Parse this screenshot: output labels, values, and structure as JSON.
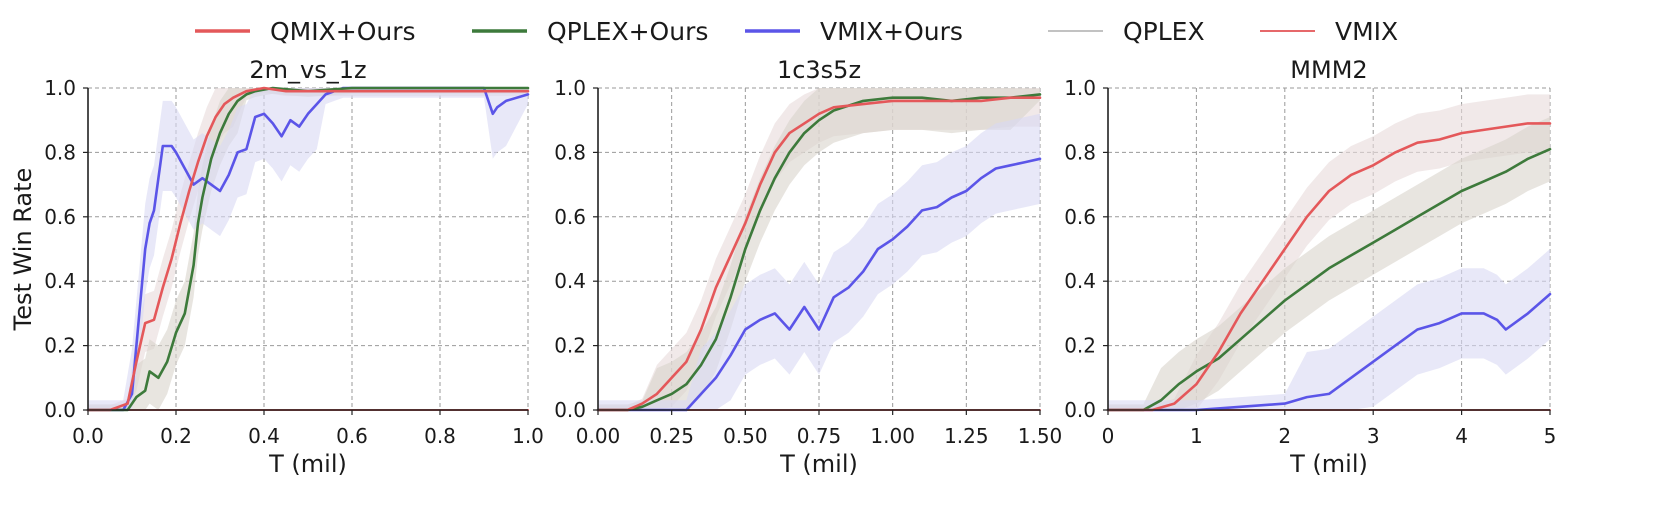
{
  "legend": {
    "placement": "top",
    "entries": [
      {
        "label": "QMIX+Ours",
        "color": "#e4585a"
      },
      {
        "label": "QPLEX+Ours",
        "color": "#3d7a3b"
      },
      {
        "label": "VMIX+Ours",
        "color": "#5b55e8"
      },
      {
        "label": "QPLEX",
        "color": "#bcbcbc"
      },
      {
        "label": "VMIX",
        "color": "#e4585a"
      }
    ]
  },
  "chart_data": [
    {
      "type": "line",
      "title": "2m_vs_1z",
      "xlabel": "T (mil)",
      "ylabel": "Test Win Rate",
      "xlim": [
        0,
        1.0
      ],
      "ylim": [
        0,
        1.0
      ],
      "xticks": [
        "0.0",
        "0.2",
        "0.4",
        "0.6",
        "0.8",
        "1.0"
      ],
      "xtick_values": [
        0,
        0.2,
        0.4,
        0.6,
        0.8,
        1.0
      ],
      "yticks": [
        "0.0",
        "0.2",
        "0.4",
        "0.6",
        "0.8",
        "1.0"
      ],
      "ytick_values": [
        0,
        0.2,
        0.4,
        0.6,
        0.8,
        1.0
      ],
      "grid": true,
      "series": [
        {
          "name": "QMIX+Ours",
          "color": "#e4585a",
          "x": [
            0,
            0.05,
            0.07,
            0.09,
            0.11,
            0.13,
            0.15,
            0.17,
            0.19,
            0.21,
            0.23,
            0.25,
            0.27,
            0.29,
            0.31,
            0.33,
            0.36,
            0.4,
            0.45,
            0.5,
            0.6,
            0.7,
            0.8,
            0.9,
            1.0
          ],
          "y": [
            0,
            0,
            0.01,
            0.02,
            0.15,
            0.27,
            0.28,
            0.38,
            0.47,
            0.58,
            0.68,
            0.77,
            0.85,
            0.91,
            0.95,
            0.97,
            0.99,
            1.0,
            0.99,
            0.99,
            0.99,
            0.99,
            0.99,
            0.99,
            0.99
          ]
        },
        {
          "name": "QPLEX+Ours",
          "color": "#3d7a3b",
          "x": [
            0,
            0.09,
            0.11,
            0.13,
            0.14,
            0.16,
            0.18,
            0.2,
            0.22,
            0.24,
            0.25,
            0.26,
            0.27,
            0.28,
            0.3,
            0.32,
            0.34,
            0.36,
            0.38,
            0.42,
            0.5,
            0.6,
            0.8,
            1.0
          ],
          "y": [
            0,
            0,
            0.04,
            0.06,
            0.12,
            0.1,
            0.15,
            0.24,
            0.3,
            0.45,
            0.58,
            0.66,
            0.72,
            0.78,
            0.86,
            0.92,
            0.96,
            0.98,
            0.99,
            1.0,
            0.99,
            1.0,
            1.0,
            1.0
          ]
        },
        {
          "name": "VMIX+Ours",
          "color": "#5b55e8",
          "x": [
            0,
            0.08,
            0.1,
            0.12,
            0.13,
            0.14,
            0.15,
            0.16,
            0.17,
            0.18,
            0.19,
            0.2,
            0.22,
            0.24,
            0.26,
            0.28,
            0.3,
            0.32,
            0.34,
            0.36,
            0.38,
            0.4,
            0.42,
            0.44,
            0.46,
            0.48,
            0.5,
            0.52,
            0.54,
            0.56,
            0.58,
            0.6,
            0.7,
            0.8,
            0.9,
            0.92,
            0.93,
            0.95,
            1.0
          ],
          "y": [
            0,
            0,
            0.05,
            0.35,
            0.5,
            0.58,
            0.62,
            0.72,
            0.82,
            0.82,
            0.82,
            0.8,
            0.75,
            0.7,
            0.72,
            0.7,
            0.68,
            0.73,
            0.8,
            0.81,
            0.91,
            0.92,
            0.89,
            0.85,
            0.9,
            0.88,
            0.92,
            0.95,
            0.98,
            0.99,
            1.0,
            1.0,
            1.0,
            1.0,
            1.0,
            0.92,
            0.94,
            0.96,
            0.98
          ]
        },
        {
          "name": "QPLEX",
          "color": "#bcbcbc",
          "x": [
            0,
            1.0
          ],
          "y": [
            0,
            0
          ]
        },
        {
          "name": "VMIX",
          "color": "#e4585a",
          "x": [
            0,
            1.0
          ],
          "y": [
            0,
            0
          ]
        }
      ]
    },
    {
      "type": "line",
      "title": "1c3s5z",
      "xlabel": "T (mil)",
      "ylabel": "",
      "xlim": [
        0,
        1.5
      ],
      "ylim": [
        0,
        1.0
      ],
      "xticks": [
        "0.00",
        "0.25",
        "0.50",
        "0.75",
        "1.00",
        "1.25",
        "1.50"
      ],
      "xtick_values": [
        0,
        0.25,
        0.5,
        0.75,
        1.0,
        1.25,
        1.5
      ],
      "yticks": [
        "0.0",
        "0.2",
        "0.4",
        "0.6",
        "0.8",
        "1.0"
      ],
      "ytick_values": [
        0,
        0.2,
        0.4,
        0.6,
        0.8,
        1.0
      ],
      "grid": true,
      "series": [
        {
          "name": "QMIX+Ours",
          "color": "#e4585a",
          "x": [
            0,
            0.1,
            0.15,
            0.2,
            0.25,
            0.3,
            0.35,
            0.4,
            0.45,
            0.5,
            0.55,
            0.6,
            0.65,
            0.7,
            0.75,
            0.8,
            0.9,
            1.0,
            1.1,
            1.2,
            1.3,
            1.4,
            1.5
          ],
          "y": [
            0,
            0.0,
            0.02,
            0.05,
            0.1,
            0.15,
            0.25,
            0.38,
            0.48,
            0.58,
            0.7,
            0.8,
            0.86,
            0.89,
            0.92,
            0.94,
            0.95,
            0.96,
            0.96,
            0.96,
            0.96,
            0.97,
            0.97
          ]
        },
        {
          "name": "QPLEX+Ours",
          "color": "#3d7a3b",
          "x": [
            0,
            0.1,
            0.15,
            0.2,
            0.25,
            0.3,
            0.35,
            0.4,
            0.45,
            0.5,
            0.55,
            0.6,
            0.65,
            0.7,
            0.75,
            0.8,
            0.9,
            1.0,
            1.1,
            1.2,
            1.3,
            1.4,
            1.5
          ],
          "y": [
            0,
            0.0,
            0.01,
            0.03,
            0.05,
            0.08,
            0.14,
            0.22,
            0.35,
            0.5,
            0.62,
            0.72,
            0.8,
            0.86,
            0.9,
            0.93,
            0.96,
            0.97,
            0.97,
            0.96,
            0.97,
            0.97,
            0.98
          ]
        },
        {
          "name": "VMIX+Ours",
          "color": "#5b55e8",
          "x": [
            0,
            0.3,
            0.35,
            0.4,
            0.45,
            0.5,
            0.55,
            0.6,
            0.65,
            0.7,
            0.75,
            0.8,
            0.85,
            0.9,
            0.95,
            1.0,
            1.05,
            1.1,
            1.15,
            1.2,
            1.25,
            1.3,
            1.35,
            1.4,
            1.45,
            1.5
          ],
          "y": [
            0,
            0.0,
            0.05,
            0.1,
            0.17,
            0.25,
            0.28,
            0.3,
            0.25,
            0.32,
            0.25,
            0.35,
            0.38,
            0.43,
            0.5,
            0.53,
            0.57,
            0.62,
            0.63,
            0.66,
            0.68,
            0.72,
            0.75,
            0.76,
            0.77,
            0.78
          ]
        },
        {
          "name": "QPLEX",
          "color": "#bcbcbc",
          "x": [
            0,
            1.5
          ],
          "y": [
            0,
            0
          ]
        },
        {
          "name": "VMIX",
          "color": "#e4585a",
          "x": [
            0,
            1.5
          ],
          "y": [
            0,
            0
          ]
        }
      ]
    },
    {
      "type": "line",
      "title": "MMM2",
      "xlabel": "T (mil)",
      "ylabel": "",
      "xlim": [
        0,
        5
      ],
      "ylim": [
        0,
        1.0
      ],
      "xticks": [
        "0",
        "1",
        "2",
        "3",
        "4",
        "5"
      ],
      "xtick_values": [
        0,
        1,
        2,
        3,
        4,
        5
      ],
      "yticks": [
        "0.0",
        "0.2",
        "0.4",
        "0.6",
        "0.8",
        "1.0"
      ],
      "ytick_values": [
        0,
        0.2,
        0.4,
        0.6,
        0.8,
        1.0
      ],
      "grid": true,
      "series": [
        {
          "name": "QMIX+Ours",
          "color": "#e4585a",
          "x": [
            0,
            0.5,
            0.75,
            1.0,
            1.25,
            1.5,
            1.75,
            2.0,
            2.25,
            2.5,
            2.75,
            3.0,
            3.25,
            3.5,
            3.75,
            4.0,
            4.25,
            4.5,
            4.75,
            5.0
          ],
          "y": [
            0,
            0.0,
            0.02,
            0.08,
            0.18,
            0.3,
            0.4,
            0.5,
            0.6,
            0.68,
            0.73,
            0.76,
            0.8,
            0.83,
            0.84,
            0.86,
            0.87,
            0.88,
            0.89,
            0.89
          ]
        },
        {
          "name": "QPLEX+Ours",
          "color": "#3d7a3b",
          "x": [
            0,
            0.4,
            0.6,
            0.8,
            1.0,
            1.25,
            1.5,
            1.75,
            2.0,
            2.25,
            2.5,
            2.75,
            3.0,
            3.25,
            3.5,
            3.75,
            4.0,
            4.25,
            4.5,
            4.75,
            5.0
          ],
          "y": [
            0,
            0.0,
            0.03,
            0.08,
            0.12,
            0.16,
            0.22,
            0.28,
            0.34,
            0.39,
            0.44,
            0.48,
            0.52,
            0.56,
            0.6,
            0.64,
            0.68,
            0.71,
            0.74,
            0.78,
            0.81
          ]
        },
        {
          "name": "VMIX+Ours",
          "color": "#5b55e8",
          "x": [
            0,
            1.0,
            1.5,
            2.0,
            2.25,
            2.5,
            2.75,
            3.0,
            3.25,
            3.5,
            3.75,
            4.0,
            4.25,
            4.4,
            4.5,
            4.75,
            5.0
          ],
          "y": [
            0,
            0.0,
            0.01,
            0.02,
            0.04,
            0.05,
            0.1,
            0.15,
            0.2,
            0.25,
            0.27,
            0.3,
            0.3,
            0.28,
            0.25,
            0.3,
            0.36
          ]
        },
        {
          "name": "QPLEX",
          "color": "#bcbcbc",
          "x": [
            0,
            5
          ],
          "y": [
            0,
            0
          ]
        },
        {
          "name": "VMIX",
          "color": "#e4585a",
          "x": [
            0,
            5
          ],
          "y": [
            0,
            0
          ]
        }
      ]
    }
  ]
}
